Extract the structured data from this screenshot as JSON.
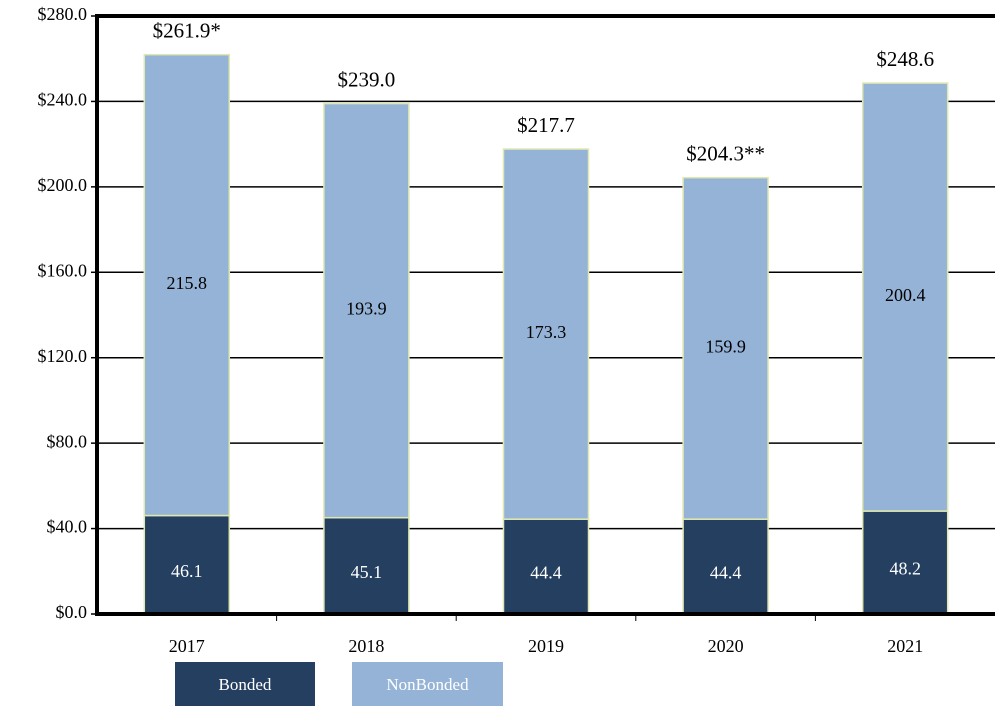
{
  "chart_data": {
    "type": "stacked_bar",
    "categories": [
      "2017",
      "2018",
      "2019",
      "2020",
      "2021"
    ],
    "series": [
      {
        "name": "Bonded",
        "color": "#243f60",
        "values": [
          46.1,
          45.1,
          44.4,
          44.4,
          48.2
        ]
      },
      {
        "name": "NonBonded",
        "color": "#95b3d7",
        "values": [
          215.8,
          193.9,
          173.3,
          159.9,
          200.4
        ]
      }
    ],
    "total_labels": [
      "$261.9*",
      "$239.0",
      "$217.7",
      "$204.3**",
      "$248.6"
    ],
    "ylim": [
      0,
      280
    ],
    "yticks": [
      {
        "value": 0,
        "label": "$0.0"
      },
      {
        "value": 40,
        "label": "$40.0"
      },
      {
        "value": 80,
        "label": "$80.0"
      },
      {
        "value": 120,
        "label": "$120.0"
      },
      {
        "value": 160,
        "label": "$160.0"
      },
      {
        "value": 200,
        "label": "$200.0"
      },
      {
        "value": 240,
        "label": "$240.0"
      },
      {
        "value": 280,
        "label": "$280.0"
      }
    ],
    "grid": true,
    "legend": "bottom"
  }
}
